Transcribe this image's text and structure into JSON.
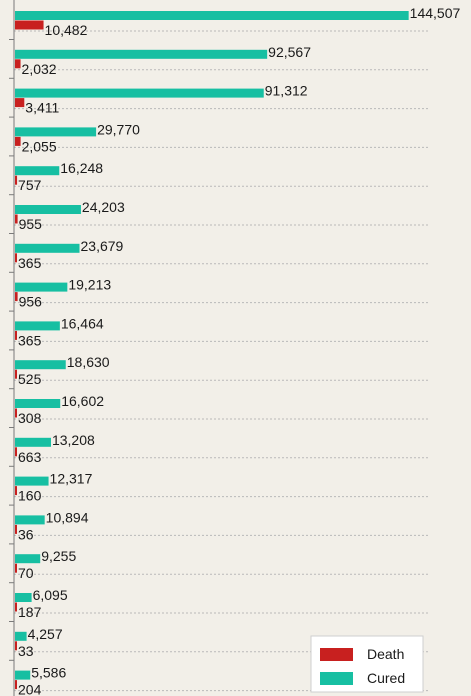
{
  "chart_data": {
    "type": "bar",
    "orientation": "horizontal",
    "title": "",
    "xlabel": "",
    "ylabel": "",
    "grid": "dotted horizontal lines",
    "legend": "bottom-right",
    "xlim": [
      0,
      145000
    ],
    "series": [
      {
        "name": "Death",
        "color": "#c8201f",
        "values": [
          10482,
          2032,
          3411,
          2055,
          757,
          955,
          365,
          956,
          365,
          525,
          308,
          663,
          160,
          36,
          70,
          187,
          33,
          204
        ],
        "labels": [
          "10,482",
          "2,032",
          "3,411",
          "2,055",
          "757",
          "955",
          "365",
          "956",
          "365",
          "525",
          "308",
          "663",
          "160",
          "36",
          "70",
          "187",
          "33",
          "204"
        ]
      },
      {
        "name": "Cured",
        "color": "#17bfa2",
        "values": [
          144507,
          92567,
          91312,
          29770,
          16248,
          24203,
          23679,
          19213,
          16464,
          18630,
          16602,
          13208,
          12317,
          10894,
          9255,
          6095,
          4257,
          5586
        ],
        "labels": [
          "144,507",
          "92,567",
          "91,312",
          "29,770",
          "16,248",
          "24,203",
          "23,679",
          "19,213",
          "16,464",
          "18,630",
          "16,602",
          "13,208",
          "12,317",
          "10,894",
          "9,255",
          "6,095",
          "4,257",
          "5,586"
        ]
      }
    ]
  }
}
